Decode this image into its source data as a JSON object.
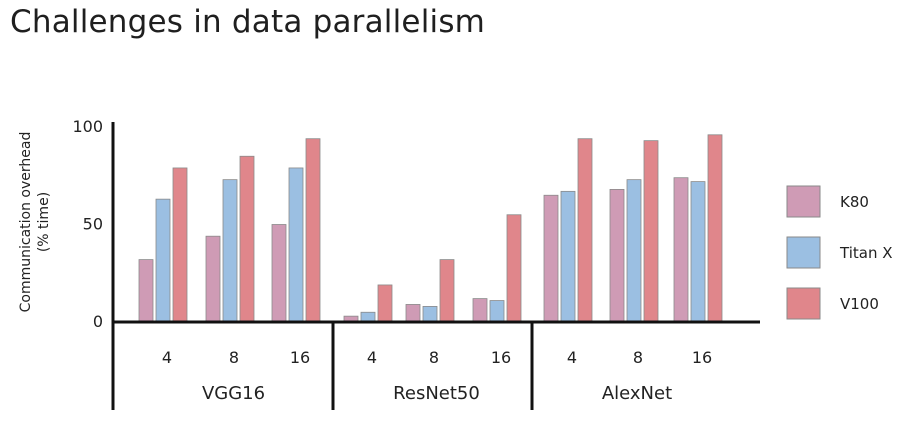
{
  "slide": {
    "title": "Challenges in data parallelism"
  },
  "chart_data": {
    "type": "bar",
    "ylabel_lines": [
      "Communication overhead",
      "(% time)"
    ],
    "ylim": [
      0,
      100
    ],
    "yticks": [
      0,
      50,
      100
    ],
    "grid": false,
    "legend_position": "right",
    "groups": [
      {
        "name": "VGG16",
        "categories": [
          "4",
          "8",
          "16"
        ]
      },
      {
        "name": "ResNet50",
        "categories": [
          "4",
          "8",
          "16"
        ]
      },
      {
        "name": "AlexNet",
        "categories": [
          "4",
          "8",
          "16"
        ]
      }
    ],
    "series": [
      {
        "name": "K80",
        "color": "#cf9bb5",
        "values": [
          32,
          44,
          50,
          3,
          9,
          12,
          65,
          68,
          74
        ]
      },
      {
        "name": "Titan X",
        "color": "#9bbfe2",
        "values": [
          63,
          73,
          79,
          5,
          8,
          11,
          67,
          73,
          72
        ]
      },
      {
        "name": "V100",
        "color": "#e0868b",
        "values": [
          79,
          85,
          94,
          19,
          32,
          55,
          94,
          93,
          96
        ]
      }
    ]
  }
}
